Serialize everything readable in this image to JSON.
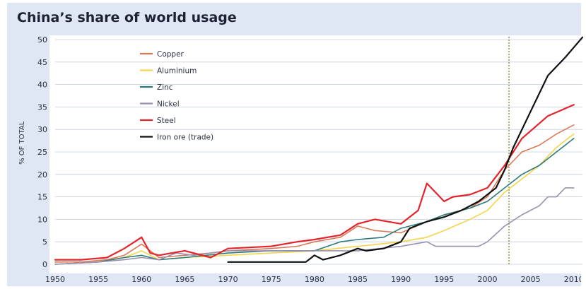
{
  "chart_data": {
    "type": "line",
    "title": "China’s share of world usage",
    "xlabel": "",
    "ylabel": "% OF TOTAL",
    "xlim": [
      1950,
      2011
    ],
    "ylim": [
      0,
      50
    ],
    "x_ticks": [
      1950,
      1955,
      1960,
      1965,
      1970,
      1975,
      1980,
      1985,
      1990,
      1995,
      2000,
      2005,
      2010
    ],
    "y_ticks": [
      0,
      5,
      10,
      15,
      20,
      25,
      30,
      35,
      40,
      45,
      50
    ],
    "grid": "horizontal",
    "legend_position": "top-left",
    "reference_line": {
      "x": 2002.5,
      "style": "dotted",
      "color": "#8a8a3a"
    },
    "series": [
      {
        "name": "Copper",
        "color": "#d97a5a",
        "x": [
          1950,
          1953,
          1956,
          1958,
          1960,
          1962,
          1965,
          1968,
          1970,
          1975,
          1978,
          1980,
          1983,
          1985,
          1987,
          1990,
          1993,
          1995,
          1998,
          2000,
          2002,
          2004,
          2006,
          2008,
          2010
        ],
        "y": [
          0.5,
          0.5,
          1,
          2,
          4.5,
          1.5,
          2,
          2.5,
          3,
          3.5,
          4,
          5,
          6,
          8.5,
          7.5,
          7,
          9.5,
          11,
          12.5,
          15,
          21,
          25,
          26.5,
          29,
          31
        ]
      },
      {
        "name": "Aluminium",
        "color": "#f4d44a",
        "x": [
          1950,
          1955,
          1958,
          1960,
          1962,
          1965,
          1970,
          1975,
          1980,
          1985,
          1990,
          1993,
          1995,
          1998,
          2000,
          2002,
          2004,
          2006,
          2008,
          2010
        ],
        "y": [
          0,
          0.5,
          1.5,
          3,
          1,
          1.5,
          2,
          2.5,
          3,
          4,
          5,
          6,
          7.5,
          10,
          12,
          16,
          19,
          22,
          26,
          29
        ]
      },
      {
        "name": "Zinc",
        "color": "#2e7a7a",
        "x": [
          1950,
          1955,
          1958,
          1960,
          1962,
          1965,
          1970,
          1975,
          1980,
          1983,
          1985,
          1988,
          1990,
          1993,
          1995,
          1998,
          2000,
          2002,
          2004,
          2006,
          2008,
          2010
        ],
        "y": [
          0,
          0.5,
          1.5,
          2,
          1,
          1.5,
          2.5,
          3,
          3,
          5,
          5.5,
          6,
          8,
          9.5,
          11,
          12.5,
          14,
          17,
          20,
          22,
          25,
          28
        ]
      },
      {
        "name": "Nickel",
        "color": "#9a90b0",
        "x": [
          1950,
          1955,
          1958,
          1960,
          1962,
          1964,
          1966,
          1970,
          1975,
          1980,
          1985,
          1990,
          1993,
          1994,
          1999,
          2000,
          2002,
          2004,
          2006,
          2007,
          2008,
          2009,
          2010
        ],
        "y": [
          0,
          0.5,
          1,
          1.5,
          1,
          2.5,
          2,
          3,
          3,
          3,
          3,
          4,
          5,
          4,
          4,
          5,
          8.5,
          11,
          13,
          15,
          15,
          17,
          17
        ]
      },
      {
        "name": "Steel",
        "color": "#e3242b",
        "x": [
          1950,
          1953,
          1956,
          1958,
          1960,
          1961,
          1962,
          1965,
          1968,
          1970,
          1975,
          1978,
          1980,
          1983,
          1985,
          1987,
          1990,
          1992,
          1993,
          1995,
          1996,
          1998,
          2000,
          2002,
          2004,
          2007,
          2010
        ],
        "y": [
          1,
          1,
          1.5,
          3.5,
          6,
          2.5,
          2,
          3,
          1.5,
          3.5,
          4,
          5,
          5.5,
          6.5,
          9,
          10,
          9,
          12,
          18,
          14,
          15,
          15.5,
          17,
          22,
          28,
          33,
          35.5
        ]
      },
      {
        "name": "Iron ore (trade)",
        "color": "#111111",
        "x": [
          1970,
          1975,
          1979,
          1980,
          1981,
          1983,
          1985,
          1986,
          1988,
          1990,
          1991,
          1993,
          1995,
          1997,
          1999,
          2001,
          2002,
          2003,
          2005,
          2007,
          2009,
          2011
        ],
        "y": [
          0.5,
          0.5,
          0.5,
          2,
          1,
          2,
          3.5,
          3,
          3.5,
          5,
          8,
          9.5,
          10.5,
          12,
          14,
          17,
          21,
          26,
          34,
          42,
          46,
          50.5
        ]
      }
    ]
  }
}
